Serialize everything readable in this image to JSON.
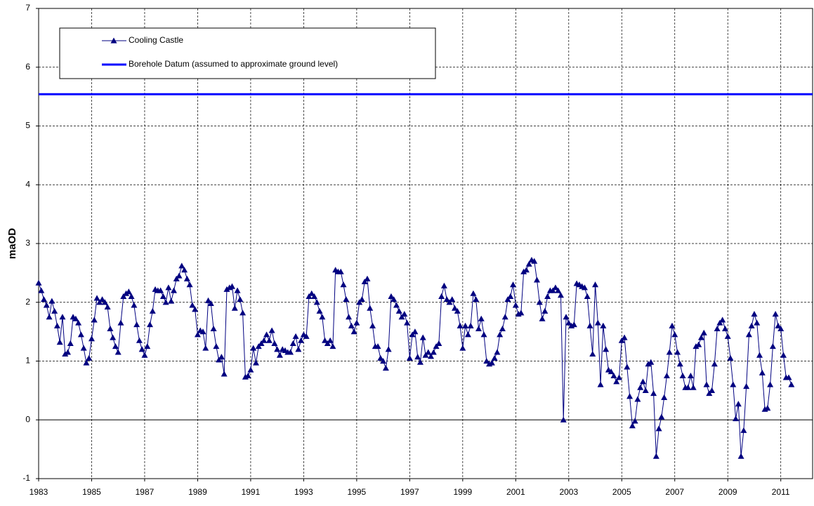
{
  "chart_data": {
    "type": "line",
    "y_label": "maOD",
    "xlim": [
      1983,
      2012.2
    ],
    "ylim": [
      -1,
      7
    ],
    "xticks": [
      1983,
      1985,
      1987,
      1989,
      1991,
      1993,
      1995,
      1997,
      1999,
      2001,
      2003,
      2005,
      2007,
      2009,
      2011
    ],
    "yticks": [
      -1,
      0,
      1,
      2,
      3,
      4,
      5,
      6,
      7
    ],
    "grid": true,
    "legend": "upper left",
    "series": [
      {
        "name": "Cooling Castle",
        "color": "#000080",
        "x": [
          1983.0,
          1983.1,
          1983.2,
          1983.3,
          1983.4,
          1983.5,
          1983.6,
          1983.7,
          1983.8,
          1983.9,
          1984.0,
          1984.1,
          1984.2,
          1984.3,
          1984.4,
          1984.5,
          1984.6,
          1984.7,
          1984.8,
          1984.9,
          1985.0,
          1985.1,
          1985.2,
          1985.3,
          1985.4,
          1985.5,
          1985.6,
          1985.7,
          1985.8,
          1985.9,
          1986.0,
          1986.1,
          1986.2,
          1986.3,
          1986.4,
          1986.5,
          1986.6,
          1986.7,
          1986.8,
          1986.9,
          1987.0,
          1987.1,
          1987.2,
          1987.3,
          1987.4,
          1987.5,
          1987.6,
          1987.7,
          1987.8,
          1987.9,
          1988.0,
          1988.1,
          1988.2,
          1988.3,
          1988.4,
          1988.5,
          1988.6,
          1988.7,
          1988.8,
          1988.9,
          1989.0,
          1989.1,
          1989.2,
          1989.3,
          1989.4,
          1989.5,
          1989.6,
          1989.7,
          1989.8,
          1989.9,
          1990.0,
          1990.1,
          1990.2,
          1990.3,
          1990.4,
          1990.5,
          1990.6,
          1990.7,
          1990.8,
          1990.9,
          1991.0,
          1991.1,
          1991.2,
          1991.3,
          1991.4,
          1991.5,
          1991.6,
          1991.7,
          1991.8,
          1991.9,
          1992.0,
          1992.1,
          1992.2,
          1992.3,
          1992.4,
          1992.5,
          1992.6,
          1992.7,
          1992.8,
          1992.9,
          1993.0,
          1993.1,
          1993.2,
          1993.3,
          1993.4,
          1993.5,
          1993.6,
          1993.7,
          1993.8,
          1993.9,
          1994.0,
          1994.1,
          1994.2,
          1994.3,
          1994.4,
          1994.5,
          1994.6,
          1994.7,
          1994.8,
          1994.9,
          1995.0,
          1995.1,
          1995.2,
          1995.3,
          1995.4,
          1995.5,
          1995.6,
          1995.7,
          1995.8,
          1995.9,
          1996.0,
          1996.1,
          1996.2,
          1996.3,
          1996.4,
          1996.5,
          1996.6,
          1996.7,
          1996.8,
          1996.9,
          1997.0,
          1997.1,
          1997.2,
          1997.3,
          1997.4,
          1997.5,
          1997.6,
          1997.7,
          1997.8,
          1997.9,
          1998.0,
          1998.1,
          1998.2,
          1998.3,
          1998.4,
          1998.5,
          1998.6,
          1998.7,
          1998.8,
          1998.9,
          1999.0,
          1999.1,
          1999.2,
          1999.3,
          1999.4,
          1999.5,
          1999.6,
          1999.7,
          1999.8,
          1999.9,
          2000.0,
          2000.1,
          2000.2,
          2000.3,
          2000.4,
          2000.5,
          2000.6,
          2000.7,
          2000.8,
          2000.9,
          2001.0,
          2001.1,
          2001.2,
          2001.3,
          2001.4,
          2001.5,
          2001.6,
          2001.7,
          2001.8,
          2001.9,
          2002.0,
          2002.1,
          2002.2,
          2002.3,
          2002.4,
          2002.5,
          2002.6,
          2002.7,
          2002.8,
          2002.9,
          2003.0,
          2003.1,
          2003.2,
          2003.3,
          2003.4,
          2003.5,
          2003.6,
          2003.7,
          2003.8,
          2003.9,
          2004.0,
          2004.1,
          2004.2,
          2004.3,
          2004.4,
          2004.5,
          2004.6,
          2004.7,
          2004.8,
          2004.9,
          2005.0,
          2005.1,
          2005.2,
          2005.3,
          2005.4,
          2005.5,
          2005.6,
          2005.7,
          2005.8,
          2005.9,
          2006.0,
          2006.1,
          2006.2,
          2006.3,
          2006.4,
          2006.5,
          2006.6,
          2006.7,
          2006.8,
          2006.9,
          2007.0,
          2007.1,
          2007.2,
          2007.3,
          2007.4,
          2007.5,
          2007.6,
          2007.7,
          2007.8,
          2007.9,
          2008.0,
          2008.1,
          2008.2,
          2008.3,
          2008.4,
          2008.5,
          2008.6,
          2008.7,
          2008.8,
          2008.9,
          2009.0,
          2009.1,
          2009.2,
          2009.3,
          2009.4,
          2009.5,
          2009.6,
          2009.7,
          2009.8,
          2009.9,
          2010.0,
          2010.1,
          2010.2,
          2010.3,
          2010.4,
          2010.5,
          2010.6,
          2010.7,
          2010.8,
          2010.9,
          2011.0,
          2011.1,
          2011.2,
          2011.3,
          2011.4
        ],
        "values": [
          2.33,
          2.2,
          2.05,
          1.95,
          1.75,
          2.02,
          1.85,
          1.6,
          1.32,
          1.75,
          1.12,
          1.15,
          1.3,
          1.75,
          1.72,
          1.65,
          1.45,
          1.22,
          0.97,
          1.05,
          1.38,
          1.7,
          2.07,
          2.0,
          2.05,
          2.0,
          1.92,
          1.55,
          1.4,
          1.25,
          1.15,
          1.65,
          2.1,
          2.15,
          2.18,
          2.1,
          1.95,
          1.62,
          1.35,
          1.2,
          1.1,
          1.25,
          1.62,
          1.85,
          2.22,
          2.2,
          2.2,
          2.1,
          2.0,
          2.25,
          2.02,
          2.2,
          2.4,
          2.45,
          2.62,
          2.55,
          2.4,
          2.3,
          1.95,
          1.88,
          1.45,
          1.52,
          1.5,
          1.22,
          2.03,
          1.98,
          1.55,
          1.25,
          1.02,
          1.07,
          0.78,
          2.22,
          2.25,
          2.27,
          1.9,
          2.2,
          2.05,
          1.82,
          0.73,
          0.75,
          0.85,
          1.22,
          0.97,
          1.25,
          1.3,
          1.35,
          1.45,
          1.35,
          1.52,
          1.3,
          1.2,
          1.1,
          1.2,
          1.18,
          1.15,
          1.15,
          1.3,
          1.42,
          1.2,
          1.35,
          1.45,
          1.42,
          2.1,
          2.15,
          2.1,
          2.0,
          1.85,
          1.75,
          1.35,
          1.3,
          1.35,
          1.25,
          2.55,
          2.52,
          2.52,
          2.3,
          2.05,
          1.75,
          1.6,
          1.5,
          1.65,
          2.0,
          2.05,
          2.35,
          2.4,
          1.9,
          1.6,
          1.25,
          1.25,
          1.05,
          1.0,
          0.88,
          1.2,
          2.1,
          2.05,
          1.95,
          1.85,
          1.75,
          1.8,
          1.65,
          1.05,
          1.45,
          1.5,
          1.07,
          0.98,
          1.4,
          1.1,
          1.15,
          1.08,
          1.15,
          1.25,
          1.3,
          2.1,
          2.28,
          2.05,
          2.0,
          2.05,
          1.9,
          1.85,
          1.6,
          1.22,
          1.6,
          1.45,
          1.6,
          2.15,
          2.05,
          1.55,
          1.72,
          1.45,
          1.0,
          0.95,
          0.97,
          1.05,
          1.15,
          1.45,
          1.55,
          1.75,
          2.05,
          2.1,
          2.3,
          1.95,
          1.8,
          1.82,
          2.52,
          2.55,
          2.65,
          2.72,
          2.7,
          2.38,
          2.0,
          1.72,
          1.85,
          2.1,
          2.2,
          2.2,
          2.25,
          2.2,
          2.12,
          0.0,
          1.75,
          1.65,
          1.6,
          1.62,
          2.32,
          2.3,
          2.27,
          2.25,
          2.1,
          1.6,
          1.12,
          2.3,
          1.65,
          0.6,
          1.6,
          1.2,
          0.85,
          0.82,
          0.75,
          0.65,
          0.72,
          1.35,
          1.4,
          0.9,
          0.4,
          -0.1,
          -0.02,
          0.35,
          0.55,
          0.65,
          0.5,
          0.95,
          0.98,
          0.45,
          -0.62,
          -0.15,
          0.05,
          0.38,
          0.75,
          1.15,
          1.6,
          1.45,
          1.15,
          0.95,
          0.75,
          0.55,
          0.55,
          0.75,
          0.55,
          1.25,
          1.28,
          1.4,
          1.48,
          0.6,
          0.45,
          0.5,
          0.95,
          1.55,
          1.65,
          1.7,
          1.55,
          1.42,
          1.05,
          0.6,
          0.02,
          0.27,
          -0.62,
          -0.18,
          0.57,
          1.45,
          1.6,
          1.8,
          1.65,
          1.1,
          0.8,
          0.18,
          0.2,
          0.6,
          1.25,
          1.8,
          1.6,
          1.55,
          1.1,
          0.72,
          0.72,
          0.6
        ]
      }
    ],
    "reference_lines": [
      {
        "name": "Borehole Datum (assumed to approximate ground level)",
        "value": 5.54,
        "color": "#0000ff"
      }
    ]
  }
}
